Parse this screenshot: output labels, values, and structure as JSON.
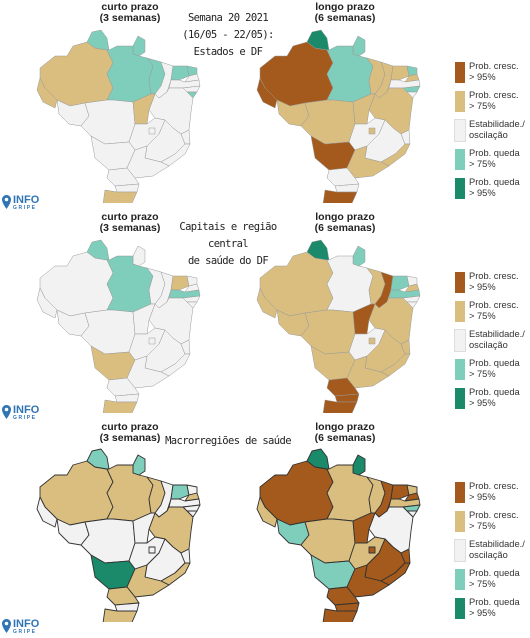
{
  "headers": {
    "short_term": [
      "curto prazo",
      "(3 semanas)"
    ],
    "long_term": [
      "longo prazo",
      "(6 semanas)"
    ]
  },
  "sections": [
    {
      "title_lines": [
        "Semana 20 2021",
        "(16/05 - 22/05):",
        "Estados e DF"
      ]
    },
    {
      "title_lines": [
        "Capitais e região central",
        "de saúde do DF"
      ]
    },
    {
      "title_lines": [
        "Macrorregiões de saúde"
      ]
    }
  ],
  "legend": [
    {
      "line1": "Prob. cresc.",
      "line2": "> 95%",
      "color": "#a35a1c"
    },
    {
      "line1": "Prob. cresc.",
      "line2": "> 75%",
      "color": "#d9be80"
    },
    {
      "line1": "Estabilidade./",
      "line2": "oscilação",
      "color": "#f2f2f2"
    },
    {
      "line1": "Prob. queda",
      "line2": "> 75%",
      "color": "#7fcdbb"
    },
    {
      "line1": "Prob. queda",
      "line2": "> 95%",
      "color": "#1a8a6a"
    }
  ],
  "logo": {
    "main": "INFO",
    "sub": "GRIPE",
    "color": "#2f74b5"
  },
  "map_colors": {
    "up95": "#a35a1c",
    "up75": "#d9be80",
    "stable": "#f2f2f2",
    "down75": "#7fcdbb",
    "down95": "#1a8a6a",
    "outline": "#9a9a9a"
  }
}
